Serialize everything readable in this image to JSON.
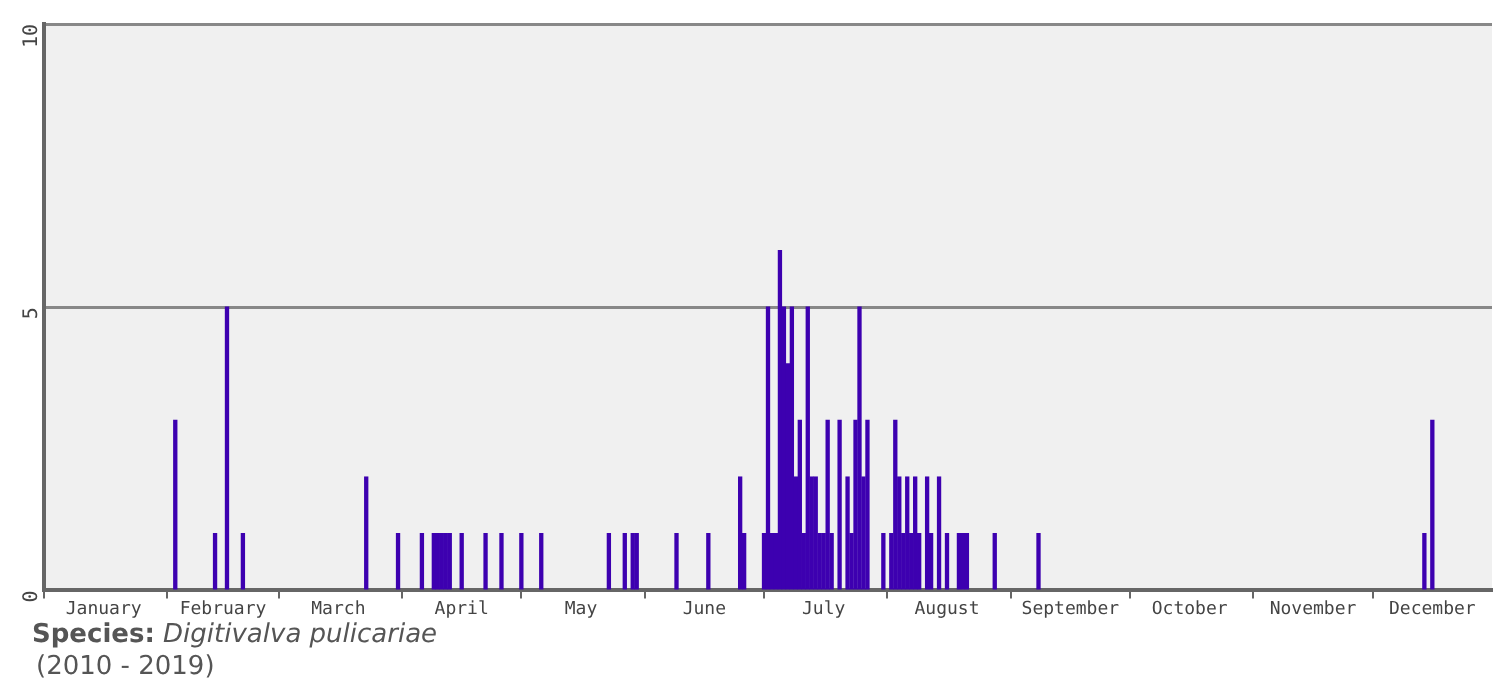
{
  "chart_data": {
    "type": "bar",
    "x": [
      "--02-03",
      "--02-13",
      "--02-16",
      "--02-20",
      "--03-23",
      "--03-31",
      "--04-06",
      "--04-09",
      "--04-10",
      "--04-11",
      "--04-12",
      "--04-13",
      "--04-16",
      "--04-22",
      "--04-26",
      "--05-01",
      "--05-06",
      "--05-23",
      "--05-27",
      "--05-29",
      "--05-30",
      "--06-09",
      "--06-17",
      "--06-25",
      "--06-26",
      "--07-01",
      "--07-02",
      "--07-03",
      "--07-04",
      "--07-05",
      "--07-06",
      "--07-07",
      "--07-08",
      "--07-09",
      "--07-10",
      "--07-11",
      "--07-12",
      "--07-13",
      "--07-14",
      "--07-15",
      "--07-16",
      "--07-17",
      "--07-18",
      "--07-20",
      "--07-22",
      "--07-23",
      "--07-24",
      "--07-25",
      "--07-26",
      "--07-27",
      "--07-31",
      "--08-02",
      "--08-03",
      "--08-04",
      "--08-05",
      "--08-06",
      "--08-07",
      "--08-08",
      "--08-09",
      "--08-11",
      "--08-12",
      "--08-14",
      "--08-16",
      "--08-19",
      "--08-20",
      "--08-21",
      "--08-28",
      "--09-08",
      "--12-14",
      "--12-16"
    ],
    "values": [
      3,
      1,
      5,
      1,
      2,
      1,
      1,
      1,
      1,
      1,
      1,
      1,
      1,
      1,
      1,
      1,
      1,
      1,
      1,
      1,
      1,
      1,
      1,
      2,
      1,
      1,
      5,
      1,
      1,
      6,
      5,
      4,
      5,
      2,
      3,
      1,
      5,
      2,
      2,
      1,
      1,
      3,
      1,
      3,
      2,
      1,
      3,
      5,
      2,
      3,
      1,
      1,
      3,
      2,
      1,
      2,
      1,
      2,
      1,
      2,
      1,
      2,
      1,
      1,
      1,
      1,
      1,
      1,
      1,
      3
    ],
    "color": "#3d00b0",
    "xlim": [
      "--01-01",
      "--12-31"
    ],
    "xticks": [
      {
        "value": "--01-01",
        "label": null
      },
      {
        "value": "--01-16",
        "label": "January"
      },
      {
        "value": "--02-01",
        "label": null
      },
      {
        "value": "--02-15",
        "label": "February"
      },
      {
        "value": "--03-01",
        "label": null
      },
      {
        "value": "--03-16",
        "label": "March"
      },
      {
        "value": "--04-01",
        "label": null
      },
      {
        "value": "--04-16",
        "label": "April"
      },
      {
        "value": "--05-01",
        "label": null
      },
      {
        "value": "--05-16",
        "label": "May"
      },
      {
        "value": "--06-01",
        "label": null
      },
      {
        "value": "--06-16",
        "label": "June"
      },
      {
        "value": "--07-01",
        "label": null
      },
      {
        "value": "--07-16",
        "label": "July"
      },
      {
        "value": "--08-01",
        "label": null
      },
      {
        "value": "--08-16",
        "label": "August"
      },
      {
        "value": "--09-01",
        "label": null
      },
      {
        "value": "--09-16",
        "label": "September"
      },
      {
        "value": "--10-01",
        "label": null
      },
      {
        "value": "--10-16",
        "label": "October"
      },
      {
        "value": "--11-01",
        "label": null
      },
      {
        "value": "--11-16",
        "label": "November"
      },
      {
        "value": "--12-01",
        "label": null
      },
      {
        "value": "--12-16",
        "label": "December"
      }
    ],
    "ylim": [
      0,
      10
    ],
    "yticks": [
      0,
      5,
      10
    ],
    "grid": "y",
    "legend": false,
    "annotations": [
      "Species: Digitivalva pulicariae",
      "(2010 - 2019)"
    ]
  }
}
